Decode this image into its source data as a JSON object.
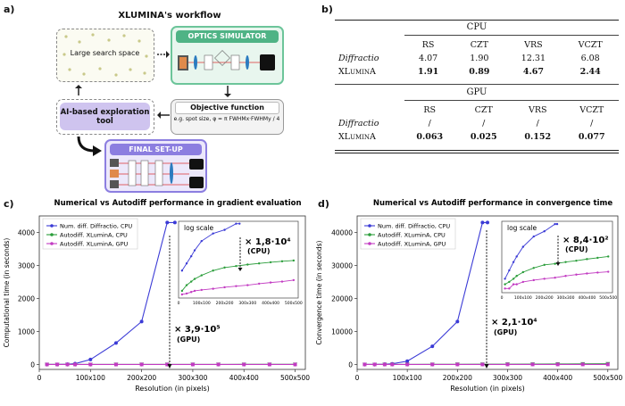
{
  "panel_a": {
    "label": "a)",
    "title": "XLUMINA's workflow",
    "search_space": "Large search space",
    "optics_simulator": "OPTICS SIMULATOR",
    "objective_title": "Objective function",
    "objective_formula": "e.g. spot size, φ = π FWHMx·FWHMy / 4",
    "ai_tool": "AI-based exploration tool",
    "final_setup": "FINAL SET-UP"
  },
  "panel_b": {
    "label": "b)",
    "cpu_header": "CPU",
    "gpu_header": "GPU",
    "columns": [
      "RS",
      "CZT",
      "VRS",
      "VCZT"
    ],
    "cpu_rows": [
      {
        "name": "Diffractio",
        "values": [
          "4.07",
          "1.90",
          "12.31",
          "6.08"
        ]
      },
      {
        "name": "XLuminA",
        "values": [
          "1.91",
          "0.89",
          "4.67",
          "2.44"
        ]
      }
    ],
    "gpu_rows": [
      {
        "name": "Diffractio",
        "values": [
          "/",
          "/",
          "/",
          "/"
        ]
      },
      {
        "name": "XLuminA",
        "values": [
          "0.063",
          "0.025",
          "0.152",
          "0.077"
        ]
      }
    ]
  },
  "chart_data": [
    {
      "panel": "c)",
      "type": "line",
      "title": "Numerical vs Autodiff performance in gradient evaluation",
      "xlabel": "Resolution (in pixels)",
      "ylabel": "Computational time (in seconds)",
      "x": [
        15,
        35,
        55,
        70,
        100,
        150,
        200,
        250,
        300,
        350,
        400,
        450,
        500
      ],
      "xticks": [
        "0",
        "100x100",
        "200x200",
        "300x300",
        "400x400",
        "500x500"
      ],
      "yticks": [
        0,
        1000,
        2000,
        3000,
        4000
      ],
      "xlim": [
        0,
        520
      ],
      "ylim": [
        -150,
        4500
      ],
      "legend": "top-left",
      "series": [
        {
          "name": "Num. diff. Diffractio, CPU",
          "color": "#3b3bd6",
          "x": [
            15,
            35,
            55,
            70,
            100,
            150,
            200,
            250,
            265
          ],
          "values": [
            0.5,
            2,
            8,
            25,
            150,
            650,
            1300,
            4300,
            4300
          ]
        },
        {
          "name": "Autodiff. XLuminA, CPU",
          "color": "#2a9d3a",
          "x": [
            15,
            35,
            55,
            70,
            100,
            150,
            200,
            250,
            300,
            350,
            400,
            450,
            500
          ],
          "values": [
            0.01,
            0.03,
            0.06,
            0.1,
            0.2,
            0.5,
            0.9,
            1.2,
            1.6,
            2,
            2.5,
            3,
            3.5
          ]
        },
        {
          "name": "Autodiff. XLuminA, GPU",
          "color": "#c23bc2",
          "x": [
            15,
            35,
            55,
            70,
            100,
            150,
            200,
            250,
            300,
            350,
            400,
            450,
            500
          ],
          "values": [
            0.005,
            0.006,
            0.008,
            0.01,
            0.012,
            0.015,
            0.02,
            0.025,
            0.03,
            0.04,
            0.05,
            0.06,
            0.08
          ]
        }
      ],
      "inset_label": "log scale",
      "annotations": {
        "cpu_factor": "× 1,8·10⁴",
        "cpu_tag": "(CPU)",
        "gpu_factor": "× 3,9·10⁵",
        "gpu_tag": "(GPU)"
      }
    },
    {
      "panel": "d)",
      "type": "line",
      "title": "Numerical vs Autodiff performance in convergence time",
      "xlabel": "Resolution (in pixels)",
      "ylabel": "Convergence time (in seconds)",
      "x": [
        15,
        35,
        55,
        70,
        100,
        150,
        200,
        250,
        300,
        350,
        400,
        450,
        500
      ],
      "xticks": [
        "0",
        "100x100",
        "200x200",
        "300x300",
        "400x400",
        "500x500"
      ],
      "yticks": [
        0,
        10000,
        20000,
        30000,
        40000
      ],
      "xlim": [
        0,
        520
      ],
      "ylim": [
        -1500,
        45000
      ],
      "legend": "top-left",
      "series": [
        {
          "name": "Num. diff. Diffractio, CPU",
          "color": "#3b3bd6",
          "x": [
            15,
            35,
            55,
            70,
            100,
            150,
            200,
            250,
            260
          ],
          "values": [
            5,
            20,
            80,
            200,
            1000,
            5500,
            13000,
            43000,
            43000
          ]
        },
        {
          "name": "Autodiff. XLuminA, CPU",
          "color": "#2a9d3a",
          "x": [
            15,
            35,
            55,
            70,
            100,
            150,
            200,
            250,
            300,
            350,
            400,
            450,
            500
          ],
          "values": [
            2,
            3,
            5,
            8,
            15,
            30,
            50,
            60,
            80,
            100,
            130,
            160,
            200
          ]
        },
        {
          "name": "Autodiff. XLuminA, GPU",
          "color": "#c23bc2",
          "x": [
            15,
            35,
            55,
            70,
            100,
            150,
            200,
            250,
            300,
            350,
            400,
            450,
            500
          ],
          "values": [
            1,
            1,
            2,
            2,
            3,
            4,
            5,
            6,
            8,
            10,
            12,
            14,
            16
          ]
        }
      ],
      "inset_label": "log scale",
      "annotations": {
        "cpu_factor": "× 8,4·10²",
        "cpu_tag": "(CPU)",
        "gpu_factor": "× 2,1·10⁴",
        "gpu_tag": "(GPU)"
      }
    }
  ]
}
